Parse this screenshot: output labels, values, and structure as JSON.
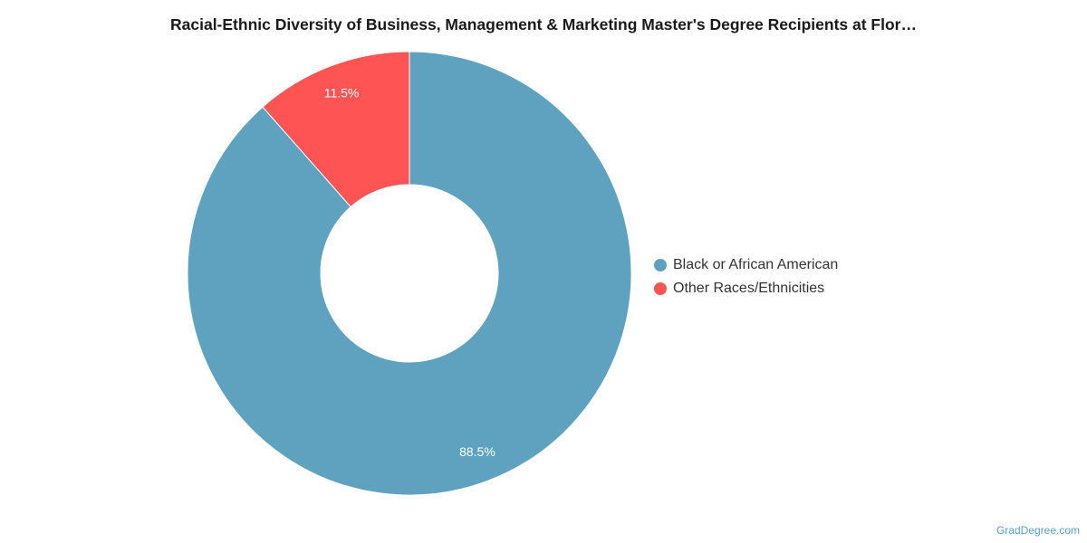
{
  "title": "Racial-Ethnic Diversity of Business, Management & Marketing Master's Degree Recipients at Flor…",
  "watermark": "GradDegree.com",
  "colors": {
    "black_or_african_american": "#5ea2bf",
    "other_races_ethnicities": "#ff5454",
    "slice_border": "#ffffff",
    "label_text": "#ffffff"
  },
  "chart_data": {
    "type": "pie",
    "variant": "donut",
    "title": "Racial-Ethnic Diversity of Business, Management & Marketing Master's Degree Recipients at Flor…",
    "legend_position": "right",
    "slices": [
      {
        "label": "Black or African American",
        "value": 88.5,
        "display": "88.5%",
        "color": "#5ea2bf"
      },
      {
        "label": "Other Races/Ethnicities",
        "value": 11.5,
        "display": "11.5%",
        "color": "#ff5454"
      }
    ]
  },
  "legend": {
    "items": [
      {
        "label": "Black or African American",
        "color": "#5ea2bf"
      },
      {
        "label": "Other Races/Ethnicities",
        "color": "#ff5454"
      }
    ]
  }
}
